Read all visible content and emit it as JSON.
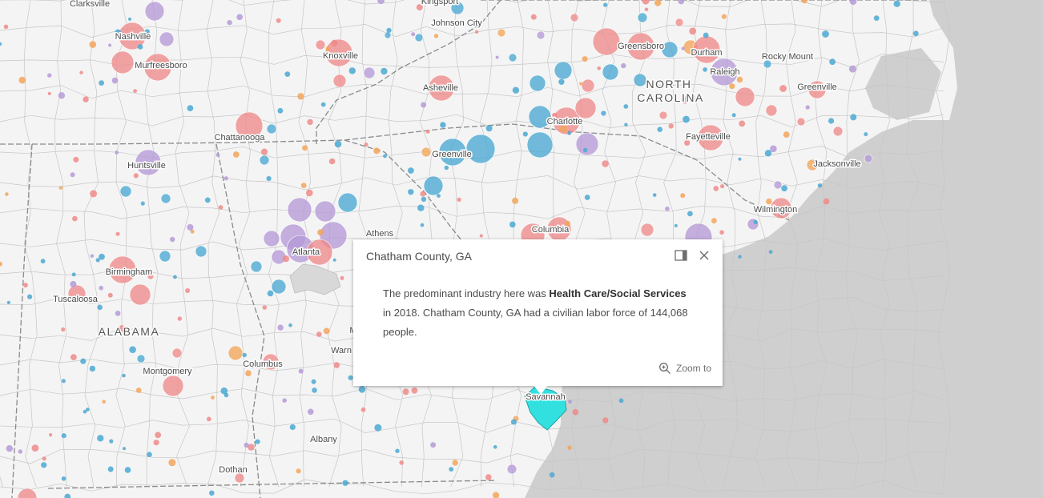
{
  "map": {
    "cities": [
      {
        "name": "Clarksville"
      },
      {
        "name": "Nashville"
      },
      {
        "name": "Murfreesboro"
      },
      {
        "name": "Kingsport"
      },
      {
        "name": "Johnson City"
      },
      {
        "name": "Knoxville"
      },
      {
        "name": "Asheville"
      },
      {
        "name": "Chattanooga"
      },
      {
        "name": "Greensboro"
      },
      {
        "name": "Durham"
      },
      {
        "name": "Raleigh"
      },
      {
        "name": "Rocky Mount"
      },
      {
        "name": "Greenville"
      },
      {
        "name": "Charlotte"
      },
      {
        "name": "Fayetteville"
      },
      {
        "name": "Greenville"
      },
      {
        "name": "Huntsville"
      },
      {
        "name": "Jacksonville"
      },
      {
        "name": "Wilmington"
      },
      {
        "name": "Athens"
      },
      {
        "name": "Atlanta"
      },
      {
        "name": "Columbia"
      },
      {
        "name": "Birmingham"
      },
      {
        "name": "Tuscaloosa"
      },
      {
        "name": "Columbus"
      },
      {
        "name": "Montgomery"
      },
      {
        "name": "Albany"
      },
      {
        "name": "Dothan"
      },
      {
        "name": "Savannah"
      },
      {
        "name": "Warn"
      },
      {
        "name": "M"
      }
    ],
    "states": [
      {
        "name": "NORTH"
      },
      {
        "name": "CAROLINA"
      },
      {
        "name": "ALABAMA"
      }
    ],
    "colors": {
      "health_care": "#ee8a8a",
      "manufacturing": "#4aa8d2",
      "retail": "#b59ad6",
      "other": "#f2a55a",
      "selected": "#33e0e0"
    }
  },
  "popup": {
    "title": "Chatham County, GA",
    "text_pre": "The predominant industry here was ",
    "industry": "Health Care/Social Services",
    "text_post": " in 2018.  Chatham County, GA had a civilian labor force of 144,068 people.",
    "zoom_label": "Zoom to",
    "dock_icon": "dock-icon",
    "close_icon": "close-icon",
    "zoom_icon": "zoom-in-icon"
  }
}
